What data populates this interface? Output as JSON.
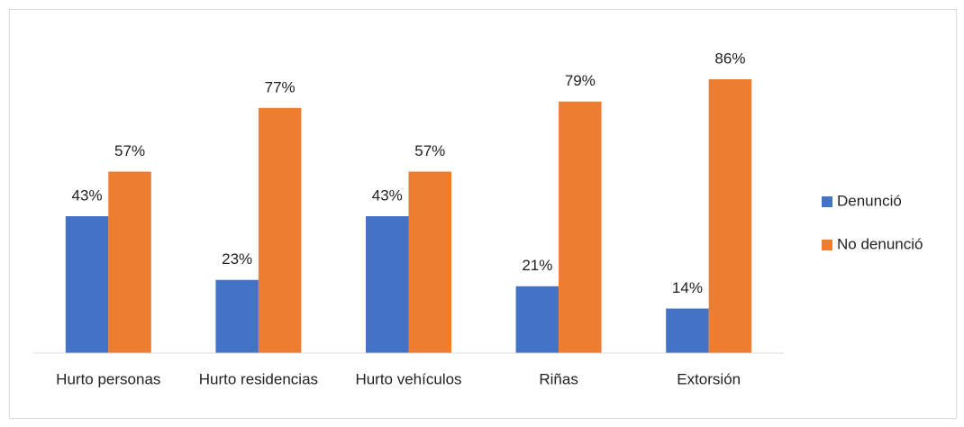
{
  "chart_data": {
    "type": "bar",
    "categories": [
      "Hurto personas",
      "Hurto residencias",
      "Hurto vehículos",
      "Riñas",
      "Extorsión"
    ],
    "series": [
      {
        "name": "Denunció",
        "color": "#4472c4",
        "values": [
          43,
          23,
          43,
          21,
          14
        ],
        "value_labels": [
          "43%",
          "23%",
          "43%",
          "21%",
          "14%"
        ]
      },
      {
        "name": "No denunció",
        "color": "#ed7d31",
        "values": [
          57,
          77,
          57,
          79,
          86
        ],
        "value_labels": [
          "57%",
          "77%",
          "57%",
          "79%",
          "86%"
        ]
      }
    ],
    "ylim": [
      0,
      100
    ],
    "legend": "right"
  }
}
